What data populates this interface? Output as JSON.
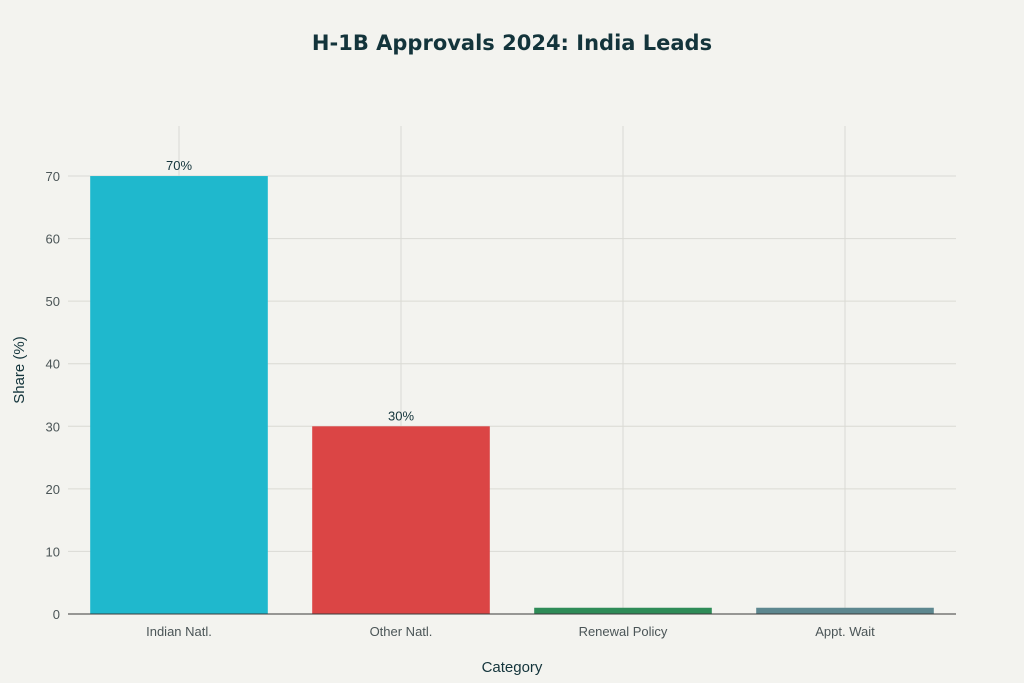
{
  "chart_data": {
    "type": "bar",
    "title": "H-1B Approvals 2024: India Leads",
    "xlabel": "Category",
    "ylabel": "Share (%)",
    "categories": [
      "Indian Natl.",
      "Other Natl.",
      "Renewal Policy",
      "Appt. Wait"
    ],
    "values": [
      70,
      30,
      1,
      1
    ],
    "data_labels": [
      "70%",
      "30%",
      "",
      ""
    ],
    "colors": [
      "#1fb8cd",
      "#db4545",
      "#2e8b57",
      "#5d878f"
    ],
    "ylim": [
      0,
      78
    ],
    "yticks": [
      0,
      10,
      20,
      30,
      40,
      50,
      60,
      70
    ],
    "grid": true,
    "legend": "none"
  }
}
